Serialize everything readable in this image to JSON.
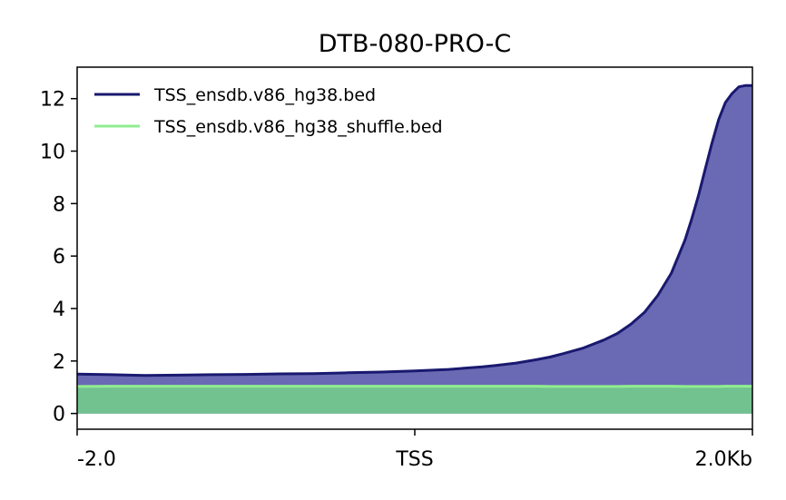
{
  "chart_data": {
    "type": "area",
    "title": "DTB-080-PRO-C",
    "xlabel": "",
    "ylabel": "",
    "x_tick_labels": [
      "-2.0",
      "TSS",
      "2.0Kb"
    ],
    "x_tick_positions": [
      0,
      50,
      100
    ],
    "xlim": [
      0,
      100
    ],
    "ylim": [
      -0.6,
      13.2
    ],
    "y_ticks": [
      0,
      2,
      4,
      6,
      8,
      10,
      12
    ],
    "grid": false,
    "legend_position": "top-left",
    "x": [
      0,
      5,
      10,
      15,
      20,
      25,
      30,
      35,
      40,
      45,
      50,
      55,
      60,
      62,
      65,
      68,
      70,
      72,
      75,
      78,
      80,
      82,
      84,
      86,
      88,
      90,
      91,
      92,
      93,
      94,
      95,
      96,
      97,
      98,
      99,
      100
    ],
    "series": [
      {
        "name": "TSS_ensdb.v86_hg38.bed",
        "color": "#191970",
        "fill_color": "#6a6ab4",
        "values": [
          1.5,
          1.48,
          1.45,
          1.46,
          1.48,
          1.49,
          1.51,
          1.52,
          1.55,
          1.58,
          1.62,
          1.68,
          1.78,
          1.83,
          1.92,
          2.05,
          2.15,
          2.28,
          2.5,
          2.8,
          3.05,
          3.4,
          3.85,
          4.5,
          5.35,
          6.6,
          7.4,
          8.3,
          9.3,
          10.3,
          11.2,
          11.85,
          12.2,
          12.45,
          12.5,
          12.5
        ]
      },
      {
        "name": "TSS_ensdb.v86_hg38_shuffle.bed",
        "color": "#90ee90",
        "fill_color": "#72c290",
        "values": [
          1.03,
          1.04,
          1.04,
          1.04,
          1.04,
          1.04,
          1.04,
          1.04,
          1.04,
          1.04,
          1.04,
          1.04,
          1.04,
          1.04,
          1.04,
          1.04,
          1.03,
          1.03,
          1.03,
          1.03,
          1.03,
          1.04,
          1.04,
          1.04,
          1.04,
          1.03,
          1.03,
          1.03,
          1.03,
          1.03,
          1.03,
          1.04,
          1.04,
          1.04,
          1.04,
          1.04
        ]
      }
    ]
  }
}
